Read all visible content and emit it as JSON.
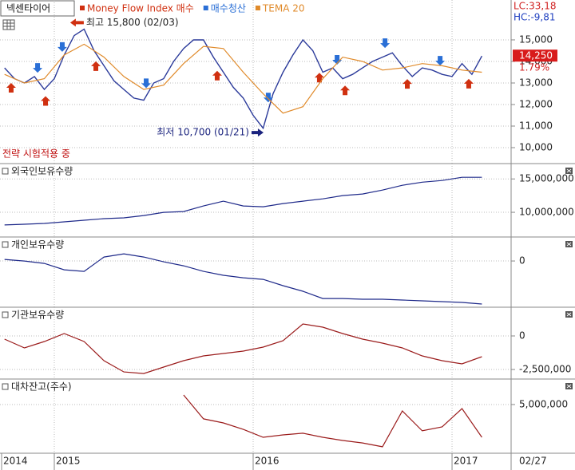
{
  "chart_data": [
    {
      "type": "line",
      "title": "넥센타이어",
      "status": "전략 시험적용 중",
      "indicator_labels": [
        "LC:33,18",
        "HC:-9,81"
      ],
      "last_price": {
        "value": 14250,
        "label": "14,250"
      },
      "change": "1.79%",
      "xlim": [
        2014.727,
        2017.297
      ],
      "ylim": [
        9260,
        16850
      ],
      "yticks": [
        {
          "value": 15000,
          "label": "15,000"
        },
        {
          "value": 14000,
          "label": "14,000"
        },
        {
          "value": 13000,
          "label": "13,000"
        },
        {
          "value": 12000,
          "label": "12,000"
        },
        {
          "value": 11000,
          "label": "11,000"
        },
        {
          "value": 10000,
          "label": "10,000"
        }
      ],
      "grid": true,
      "series": [
        {
          "name": "넥센타이어",
          "color": "#2b3a9a",
          "kind": "price",
          "x": [
            2014.75,
            2014.8,
            2014.85,
            2014.9,
            2014.95,
            2015,
            2015.05,
            2015.1,
            2015.15,
            2015.2,
            2015.25,
            2015.3,
            2015.35,
            2015.4,
            2015.45,
            2015.5,
            2015.55,
            2015.6,
            2015.65,
            2015.7,
            2015.75,
            2015.8,
            2015.85,
            2015.9,
            2015.95,
            2016,
            2016.05,
            2016.1,
            2016.15,
            2016.2,
            2016.25,
            2016.3,
            2016.35,
            2016.4,
            2016.45,
            2016.5,
            2016.55,
            2016.6,
            2016.65,
            2016.7,
            2016.75,
            2016.8,
            2016.85,
            2016.9,
            2016.95,
            2017,
            2017.05,
            2017.1,
            2017.15
          ],
          "values": [
            13700,
            13200,
            13000,
            13300,
            12700,
            13200,
            14300,
            15200,
            15500,
            14500,
            13800,
            13100,
            12700,
            12300,
            12200,
            13000,
            13200,
            14000,
            14600,
            15000,
            15000,
            14200,
            13500,
            12800,
            12300,
            11500,
            10900,
            12500,
            13500,
            14300,
            15000,
            14500,
            13500,
            13700,
            13200,
            13400,
            13700,
            14000,
            14200,
            14400,
            13800,
            13300,
            13700,
            13600,
            13400,
            13300,
            13900,
            13400,
            14250
          ]
        },
        {
          "name": "Money Flow Index 매수",
          "color": "#d03010",
          "kind": "buy",
          "x": [
            2014.783,
            2014.956,
            2015.209,
            2015.819,
            2016.333,
            2016.462,
            2016.775,
            2017.084
          ]
        },
        {
          "name": "매수청산",
          "color": "#2a6fd6",
          "kind": "sell",
          "x": [
            2014.916,
            2015.04,
            2015.462,
            2016.076,
            2016.422,
            2016.663,
            2016.94
          ]
        },
        {
          "name": "TEMA 20",
          "color": "#e08a2a",
          "kind": "line",
          "x": [
            2014.75,
            2014.85,
            2014.95,
            2015.05,
            2015.15,
            2015.25,
            2015.35,
            2015.45,
            2015.55,
            2015.65,
            2015.75,
            2015.85,
            2015.95,
            2016.05,
            2016.15,
            2016.25,
            2016.35,
            2016.45,
            2016.55,
            2016.65,
            2016.75,
            2016.85,
            2016.95,
            2017.05,
            2017.15
          ],
          "values": [
            13400,
            13000,
            13200,
            14300,
            14800,
            14200,
            13300,
            12700,
            12900,
            13900,
            14700,
            14600,
            13500,
            12500,
            11600,
            11900,
            13200,
            14200,
            14000,
            13600,
            13700,
            13900,
            13800,
            13600,
            13500
          ]
        }
      ],
      "annotations": [
        {
          "text": "최고 15,800 (02/03)",
          "x": 2015.08,
          "y": 15800,
          "color": "#d03010"
        },
        {
          "text": "최저 10,700 (01/21)",
          "x": 2016.052,
          "y": 10700,
          "color": "#1a237e"
        }
      ]
    },
    {
      "type": "line",
      "title": "외국인보유수량",
      "color": "#1f2a8a",
      "xlim": [
        2014.727,
        2017.297
      ],
      "ylim": [
        6300000,
        17300000
      ],
      "yticks": [
        {
          "value": 15000000,
          "label": "15,000,000"
        },
        {
          "value": 10000000,
          "label": "10,000,000"
        }
      ],
      "grid": true,
      "x": [
        2014.75,
        2014.85,
        2014.95,
        2015.05,
        2015.15,
        2015.25,
        2015.35,
        2015.45,
        2015.55,
        2015.65,
        2015.75,
        2015.85,
        2015.95,
        2016.05,
        2016.15,
        2016.25,
        2016.35,
        2016.45,
        2016.55,
        2016.65,
        2016.75,
        2016.85,
        2016.95,
        2017.05,
        2017.15
      ],
      "values": [
        8100000,
        8210000,
        8330000,
        8570000,
        8810000,
        9050000,
        9170000,
        9520000,
        10000000,
        10120000,
        10950000,
        11670000,
        10950000,
        10830000,
        11310000,
        11670000,
        12020000,
        12500000,
        12740000,
        13330000,
        14050000,
        14520000,
        14760000,
        15240000,
        15240000
      ]
    },
    {
      "type": "line",
      "title": "개인보유수량",
      "color": "#1f2a8a",
      "xlim": [
        2014.727,
        2017.297
      ],
      "ylim": [
        -3450000,
        1790000
      ],
      "yticks": [
        0
      ],
      "grid": true,
      "x": [
        2014.75,
        2014.85,
        2014.95,
        2015.05,
        2015.15,
        2015.25,
        2015.35,
        2015.45,
        2015.55,
        2015.65,
        2015.75,
        2015.85,
        2015.95,
        2016.05,
        2016.15,
        2016.25,
        2016.35,
        2016.45,
        2016.55,
        2016.65,
        2016.75,
        2016.85,
        2016.95,
        2017.05,
        2017.15
      ],
      "values": [
        119000,
        0,
        -179000,
        -655000,
        -774000,
        298000,
        536000,
        298000,
        -60000,
        -357000,
        -774000,
        -1071000,
        -1250000,
        -1369000,
        -1845000,
        -2262000,
        -2798000,
        -2798000,
        -2857000,
        -2857000,
        -2917000,
        -2976000,
        -3036000,
        -3095000,
        -3214000
      ]
    },
    {
      "type": "line",
      "title": "기관보유수량",
      "color": "#9b1c1c",
      "xlim": [
        2014.727,
        2017.297
      ],
      "ylim": [
        -3210000,
        2140000
      ],
      "yticks": [
        0,
        {
          "value": -2500000,
          "label": "-2,500,000"
        }
      ],
      "grid": true,
      "x": [
        2014.75,
        2014.85,
        2014.95,
        2015.05,
        2015.15,
        2015.25,
        2015.35,
        2015.45,
        2015.55,
        2015.65,
        2015.75,
        2015.85,
        2015.95,
        2016.05,
        2016.15,
        2016.25,
        2016.35,
        2016.45,
        2016.55,
        2016.65,
        2016.75,
        2016.85,
        2016.95,
        2017.05,
        2017.15
      ],
      "values": [
        -238000,
        -893000,
        -417000,
        179000,
        -417000,
        -1845000,
        -2679000,
        -2798000,
        -2321000,
        -1845000,
        -1488000,
        -1310000,
        -1131000,
        -833000,
        -357000,
        893000,
        655000,
        179000,
        -238000,
        -536000,
        -893000,
        -1488000,
        -1845000,
        -2083000,
        -1548000
      ]
    },
    {
      "type": "line",
      "title": "대차잔고(주수)",
      "color": "#9b1c1c",
      "xlim": [
        2014.727,
        2017.297
      ],
      "ylim": [
        1370000,
        6900000
      ],
      "yticks": [
        {
          "value": 5000000,
          "label": "5,000,000"
        }
      ],
      "grid": true,
      "xticks": [
        {
          "value": 2014.735,
          "label": "2014"
        },
        2015,
        2016,
        2017
      ],
      "x_end_label": "02/27",
      "x": [
        2014.75,
        2014.85,
        2014.95,
        2015.05,
        2015.15,
        2015.25,
        2015.35,
        2015.45,
        2015.55,
        2015.65,
        2015.75,
        2015.85,
        2015.95,
        2016.05,
        2016.15,
        2016.25,
        2016.35,
        2016.45,
        2016.55,
        2016.65,
        2016.75,
        2016.85,
        2016.95,
        2017.05,
        2017.15
      ],
      "values": [
        null,
        null,
        null,
        null,
        null,
        null,
        null,
        null,
        null,
        5710000,
        3930000,
        3630000,
        3150000,
        2560000,
        2740000,
        2860000,
        2560000,
        2320000,
        2140000,
        1850000,
        4520000,
        3040000,
        3330000,
        4700000,
        2560000
      ]
    }
  ]
}
